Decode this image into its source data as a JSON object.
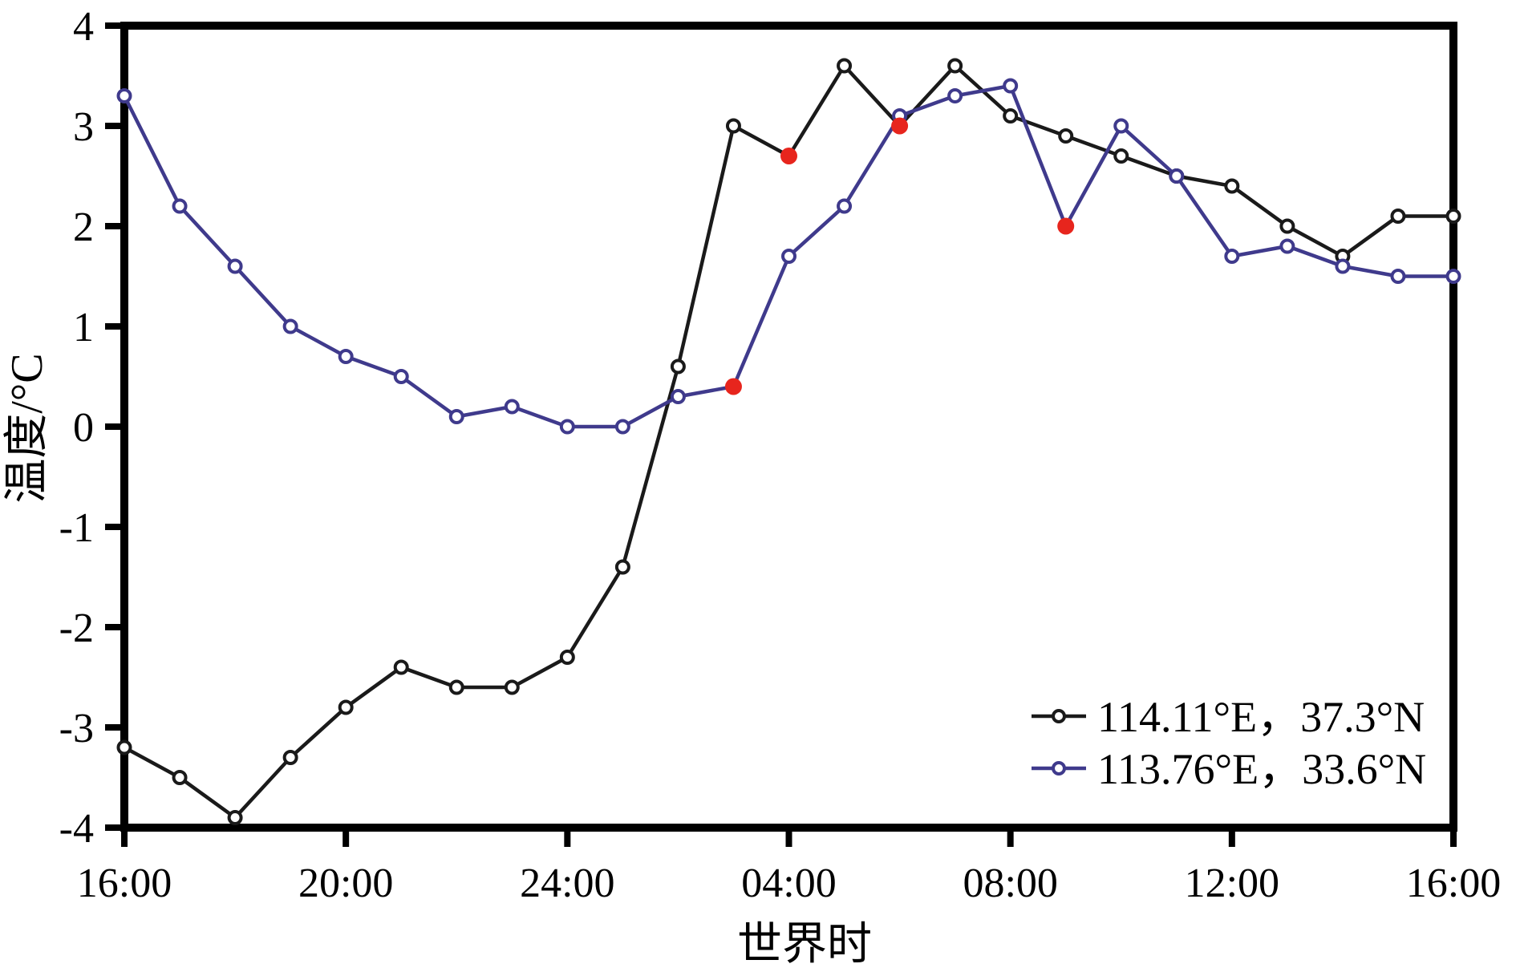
{
  "chart_data": {
    "type": "line",
    "title": "",
    "xlabel": "世界时",
    "ylabel": "温度/°C",
    "grid": false,
    "legend_position": "lower-right",
    "xlim_hours": [
      0,
      24
    ],
    "ylim": [
      -4,
      4
    ],
    "y_ticks": [
      4,
      3,
      2,
      1,
      0,
      -1,
      -2,
      -3,
      -4
    ],
    "x_tick_hours": [
      0,
      4,
      8,
      12,
      16,
      20,
      24
    ],
    "x_tick_labels": [
      "16:00",
      "20:00",
      "24:00",
      "04:00",
      "08:00",
      "12:00",
      "16:00"
    ],
    "x_hour_labels": [
      "16:00",
      "17:00",
      "18:00",
      "19:00",
      "20:00",
      "21:00",
      "22:00",
      "23:00",
      "24:00",
      "01:00",
      "02:00",
      "03:00",
      "04:00",
      "05:00",
      "06:00",
      "07:00",
      "08:00",
      "09:00",
      "10:00",
      "11:00",
      "12:00",
      "13:00",
      "14:00",
      "15:00",
      "16:00"
    ],
    "marker": "open-circle",
    "highlight_marker": "filled-circle",
    "highlight_color": "#e7251d",
    "series": [
      {
        "name": "114.11°E，37.3°N",
        "color": "#1a1a1a",
        "values": [
          -3.2,
          -3.5,
          -3.9,
          -3.3,
          -2.8,
          -2.4,
          -2.6,
          -2.6,
          -2.3,
          -1.4,
          0.6,
          3.0,
          2.7,
          3.6,
          3.0,
          3.6,
          3.1,
          2.9,
          2.7,
          2.5,
          2.4,
          2.0,
          1.7,
          2.1,
          2.1
        ],
        "highlight_indices": [
          12,
          14
        ]
      },
      {
        "name": "113.76°E，33.6°N",
        "color": "#3f3a8c",
        "values": [
          3.3,
          2.2,
          1.6,
          1.0,
          0.7,
          0.5,
          0.1,
          0.2,
          0.0,
          0.0,
          0.3,
          0.4,
          1.7,
          2.2,
          3.1,
          3.3,
          3.4,
          2.0,
          3.0,
          2.5,
          1.7,
          1.8,
          1.6,
          1.5,
          1.5
        ],
        "highlight_indices": [
          11,
          17
        ]
      }
    ]
  }
}
